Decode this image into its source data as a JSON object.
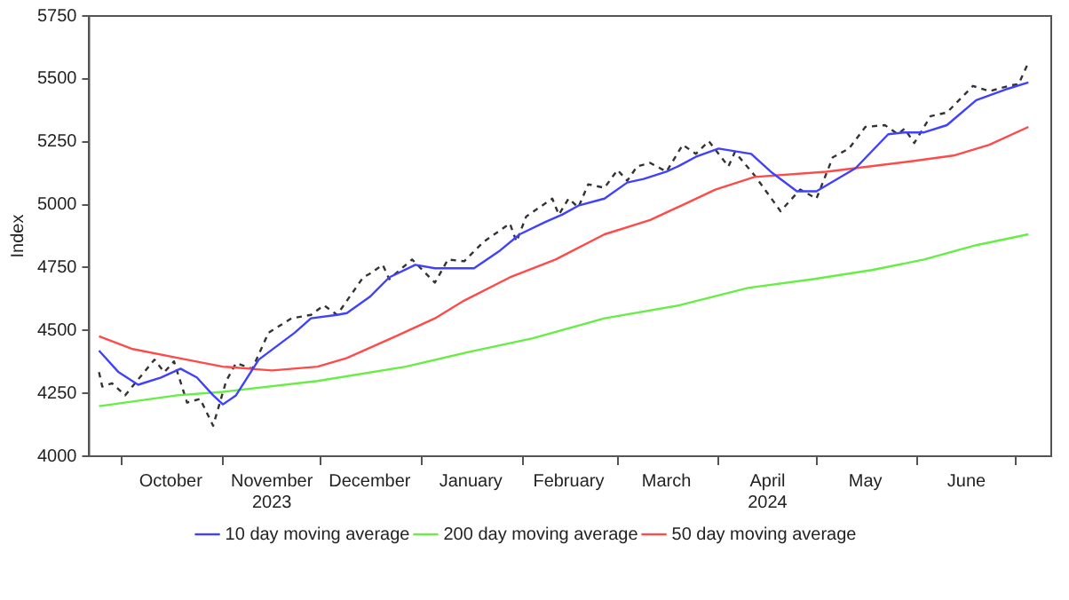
{
  "chart_data": {
    "type": "line",
    "ylabel": "Index",
    "legend": "bottom",
    "marker": "none",
    "grid": false,
    "xlim": [
      "2023-09-21",
      "2024-07-12"
    ],
    "ylim": [
      4000,
      5750
    ],
    "yticks": [
      4000,
      4250,
      4500,
      4750,
      5000,
      5250,
      5500,
      5750
    ],
    "xticks": [
      {
        "value": "2023-10-01",
        "label": null
      },
      {
        "value": "2023-10-16",
        "label": "October"
      },
      {
        "value": "2023-11-01",
        "label": null
      },
      {
        "value": "2023-11-16",
        "label": "November\n2023"
      },
      {
        "value": "2023-12-01",
        "label": null
      },
      {
        "value": "2023-12-16",
        "label": "December"
      },
      {
        "value": "2024-01-01",
        "label": null
      },
      {
        "value": "2024-01-16",
        "label": "January"
      },
      {
        "value": "2024-02-01",
        "label": null
      },
      {
        "value": "2024-02-15",
        "label": "February"
      },
      {
        "value": "2024-03-01",
        "label": null
      },
      {
        "value": "2024-03-16",
        "label": "March"
      },
      {
        "value": "2024-04-01",
        "label": null
      },
      {
        "value": "2024-04-16",
        "label": "April\n2024"
      },
      {
        "value": "2024-05-01",
        "label": null
      },
      {
        "value": "2024-05-16",
        "label": "May"
      },
      {
        "value": "2024-06-01",
        "label": null
      },
      {
        "value": "2024-06-16",
        "label": "June"
      },
      {
        "value": "2024-07-01",
        "label": null
      }
    ],
    "series": [
      {
        "name": "10 day moving average",
        "color": "#4040ff",
        "line_style": "solid",
        "x": [
          "2023-09-24",
          "2023-09-30",
          "2023-10-06",
          "2023-10-13",
          "2023-10-19",
          "2023-10-24",
          "2023-10-29",
          "2023-11-01",
          "2023-11-05",
          "2023-11-12",
          "2023-11-23",
          "2023-11-28",
          "2023-12-06",
          "2023-12-09",
          "2023-12-16",
          "2023-12-22",
          "2023-12-30",
          "2024-01-05",
          "2024-01-17",
          "2024-01-25",
          "2024-01-31",
          "2024-02-08",
          "2024-02-13",
          "2024-02-18",
          "2024-02-26",
          "2024-03-04",
          "2024-03-09",
          "2024-03-16",
          "2024-03-20",
          "2024-03-25",
          "2024-04-01",
          "2024-04-11",
          "2024-04-17",
          "2024-04-25",
          "2024-05-01",
          "2024-05-13",
          "2024-05-23",
          "2024-05-28",
          "2024-06-03",
          "2024-06-10",
          "2024-06-19",
          "2024-06-28",
          "2024-07-05"
        ],
        "values": [
          4420,
          4334,
          4284,
          4313,
          4348,
          4313,
          4242,
          4206,
          4242,
          4384,
          4491,
          4548,
          4562,
          4569,
          4633,
          4711,
          4761,
          4747,
          4747,
          4818,
          4882,
          4932,
          4960,
          4996,
          5024,
          5088,
          5102,
          5131,
          5155,
          5190,
          5223,
          5202,
          5131,
          5053,
          5053,
          5145,
          5280,
          5287,
          5287,
          5316,
          5415,
          5458,
          5486
        ]
      },
      {
        "name": "200 day moving average",
        "color": "#66ee44",
        "line_style": "solid",
        "x": [
          "2023-09-24",
          "2023-10-18",
          "2023-11-01",
          "2023-11-30",
          "2023-12-27",
          "2024-01-15",
          "2024-02-04",
          "2024-02-26",
          "2024-03-20",
          "2024-04-10",
          "2024-04-30",
          "2024-05-18",
          "2024-06-03",
          "2024-06-19",
          "2024-07-05"
        ],
        "values": [
          4199,
          4242,
          4256,
          4299,
          4356,
          4413,
          4469,
          4548,
          4600,
          4669,
          4704,
          4740,
          4782,
          4839,
          4882
        ]
      },
      {
        "name": "50 day moving average",
        "color": "#ff4a4a",
        "line_style": "solid",
        "x": [
          "2023-09-24",
          "2023-10-04",
          "2023-10-18",
          "2023-11-01",
          "2023-11-16",
          "2023-11-30",
          "2023-12-09",
          "2023-12-24",
          "2024-01-05",
          "2024-01-14",
          "2024-01-28",
          "2024-02-11",
          "2024-02-26",
          "2024-03-11",
          "2024-03-20",
          "2024-03-31",
          "2024-04-12",
          "2024-05-04",
          "2024-05-31",
          "2024-06-12",
          "2024-06-23",
          "2024-07-05"
        ],
        "values": [
          4477,
          4427,
          4391,
          4356,
          4341,
          4356,
          4390,
          4477,
          4548,
          4619,
          4711,
          4782,
          4882,
          4939,
          4993,
          5060,
          5110,
          5131,
          5174,
          5195,
          5238,
          5309
        ]
      },
      {
        "color": "#333333",
        "line_style": "dashed",
        "x": [
          "2023-09-24",
          "2023-09-25",
          "2023-09-28",
          "2023-10-02",
          "2023-10-11",
          "2023-10-14",
          "2023-10-17",
          "2023-10-21",
          "2023-10-25",
          "2023-10-29",
          "2023-11-02",
          "2023-11-05",
          "2023-11-10",
          "2023-11-15",
          "2023-11-22",
          "2023-11-28",
          "2023-12-02",
          "2023-12-06",
          "2023-12-14",
          "2023-12-16",
          "2023-12-20",
          "2023-12-22",
          "2023-12-29",
          "2024-01-05",
          "2024-01-09",
          "2024-01-14",
          "2024-01-20",
          "2024-01-28",
          "2024-01-30",
          "2024-02-02",
          "2024-02-10",
          "2024-02-12",
          "2024-02-15",
          "2024-02-18",
          "2024-02-21",
          "2024-02-26",
          "2024-03-01",
          "2024-03-04",
          "2024-03-07",
          "2024-03-11",
          "2024-03-16",
          "2024-03-21",
          "2024-03-25",
          "2024-03-29",
          "2024-04-04",
          "2024-04-06",
          "2024-04-12",
          "2024-04-20",
          "2024-04-26",
          "2024-05-01",
          "2024-05-06",
          "2024-05-11",
          "2024-05-16",
          "2024-05-22",
          "2024-05-26",
          "2024-05-28",
          "2024-05-31",
          "2024-06-05",
          "2024-06-10",
          "2024-06-18",
          "2024-06-23",
          "2024-06-29",
          "2024-07-02",
          "2024-07-05"
        ],
        "values": [
          4334,
          4277,
          4290,
          4242,
          4384,
          4334,
          4377,
          4213,
          4228,
          4121,
          4299,
          4370,
          4348,
          4491,
          4548,
          4562,
          4600,
          4562,
          4711,
          4725,
          4761,
          4704,
          4782,
          4690,
          4782,
          4775,
          4853,
          4925,
          4853,
          4953,
          5024,
          4960,
          5024,
          4989,
          5081,
          5067,
          5138,
          5095,
          5152,
          5166,
          5131,
          5238,
          5202,
          5252,
          5152,
          5209,
          5117,
          4974,
          5060,
          5024,
          5188,
          5223,
          5309,
          5316,
          5280,
          5302,
          5245,
          5352,
          5366,
          5472,
          5451,
          5472,
          5480,
          5565
        ]
      }
    ]
  }
}
